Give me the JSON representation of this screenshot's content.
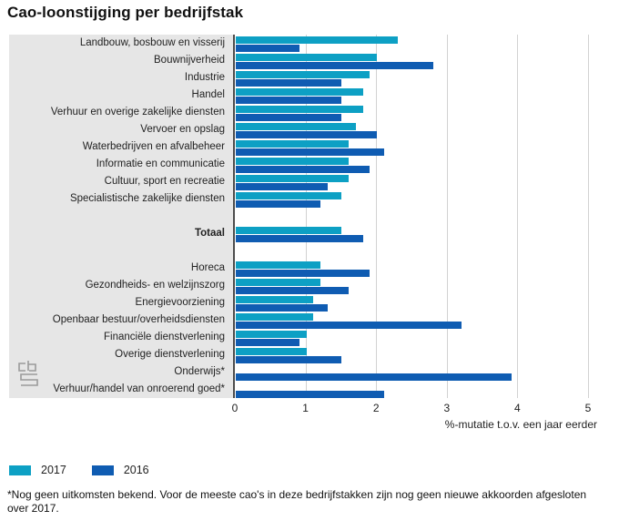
{
  "page": {
    "footnote": "*Nog geen uitkomsten bekend. Voor de meeste cao's in deze bedrijfstakken zijn nog geen nieuwe akkoorden afgesloten over 2017."
  },
  "chart_data": {
    "type": "bar",
    "orientation": "horizontal",
    "title": "Cao-loonstijging per bedrijfstak",
    "xlabel": "%-mutatie t.o.v. een jaar eerder",
    "xlim": [
      0,
      5
    ],
    "xticks": [
      "0",
      "1",
      "2",
      "3",
      "4",
      "5"
    ],
    "grid": true,
    "legend_position": "bottom",
    "series": [
      {
        "name": "2017",
        "color": "#0da0c4"
      },
      {
        "name": "2016",
        "color": "#0f5cb2"
      }
    ],
    "groups": [
      {
        "rows": [
          {
            "label": "Landbouw, bosbouw en visserij",
            "values": [
              2.3,
              0.9
            ]
          },
          {
            "label": "Bouwnijverheid",
            "values": [
              2.0,
              2.8
            ]
          },
          {
            "label": "Industrie",
            "values": [
              1.9,
              1.5
            ]
          },
          {
            "label": "Handel",
            "values": [
              1.8,
              1.5
            ]
          },
          {
            "label": "Verhuur en overige zakelijke diensten",
            "values": [
              1.8,
              1.5
            ]
          },
          {
            "label": "Vervoer en opslag",
            "values": [
              1.7,
              2.0
            ]
          },
          {
            "label": "Waterbedrijven en afvalbeheer",
            "values": [
              1.6,
              2.1
            ]
          },
          {
            "label": "Informatie en communicatie",
            "values": [
              1.6,
              1.9
            ]
          },
          {
            "label": "Cultuur, sport en recreatie",
            "values": [
              1.6,
              1.3
            ]
          },
          {
            "label": "Specialistische zakelijke diensten",
            "values": [
              1.5,
              1.2
            ]
          }
        ]
      },
      {
        "rows": [
          {
            "label": "Totaal",
            "bold": true,
            "values": [
              1.5,
              1.8
            ]
          }
        ]
      },
      {
        "rows": [
          {
            "label": "Horeca",
            "values": [
              1.2,
              1.9
            ]
          },
          {
            "label": "Gezondheids- en welzijnszorg",
            "values": [
              1.2,
              1.6
            ]
          },
          {
            "label": "Energievoorziening",
            "values": [
              1.1,
              1.3
            ]
          },
          {
            "label": "Openbaar bestuur/overheidsdiensten",
            "values": [
              1.1,
              3.2
            ]
          },
          {
            "label": "Financiële dienstverlening",
            "values": [
              1.0,
              0.9
            ]
          },
          {
            "label": "Overige dienstverlening",
            "values": [
              1.0,
              1.5
            ]
          },
          {
            "label": "Onderwijs*",
            "values": [
              null,
              3.9
            ]
          },
          {
            "label": "Verhuur/handel van onroerend goed*",
            "values": [
              null,
              2.1
            ]
          }
        ]
      }
    ],
    "colors": {
      "panel_bg": "#e6e6e6",
      "gridline": "#d2d2d2",
      "axis": "#4d4d4d"
    }
  },
  "branding": {
    "logo": "cbs-logo"
  }
}
